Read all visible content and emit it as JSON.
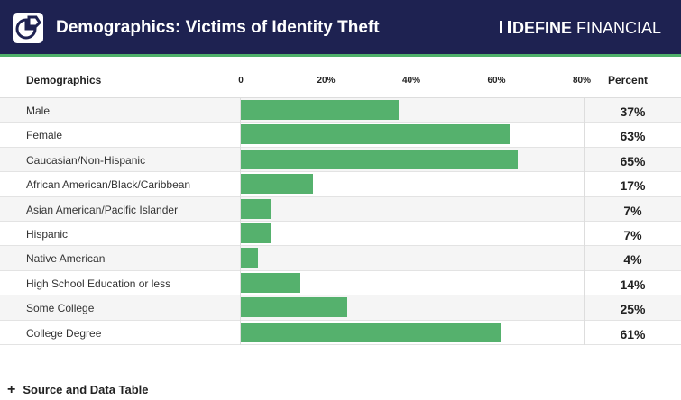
{
  "header": {
    "title": "Demographics: Victims of Identity Theft",
    "brand_bold": "DEFINE",
    "brand_light": " FINANCIAL",
    "accent": "#4fb06a",
    "navy": "#1e2251"
  },
  "chart_data": {
    "type": "bar",
    "orientation": "horizontal",
    "title": "Demographics: Victims of Identity Theft",
    "column_headers": {
      "category": "Demographics",
      "value": "Percent"
    },
    "tick_labels": [
      "0",
      "20%",
      "40%",
      "60%",
      "80%"
    ],
    "xlim": [
      0,
      80
    ],
    "bar_color": "#55b16d",
    "categories": [
      "Male",
      "Female",
      "Caucasian/Non-Hispanic",
      "African American/Black/Caribbean",
      "Asian American/Pacific Islander",
      "Hispanic",
      "Native American",
      "High School Education or less",
      "Some College",
      "College Degree"
    ],
    "values": [
      37,
      63,
      65,
      17,
      7,
      7,
      4,
      14,
      25,
      61
    ],
    "value_labels": [
      "37%",
      "63%",
      "65%",
      "17%",
      "7%",
      "7%",
      "4%",
      "14%",
      "25%",
      "61%"
    ]
  },
  "footer": {
    "plus": "+",
    "label": "Source and Data Table"
  }
}
